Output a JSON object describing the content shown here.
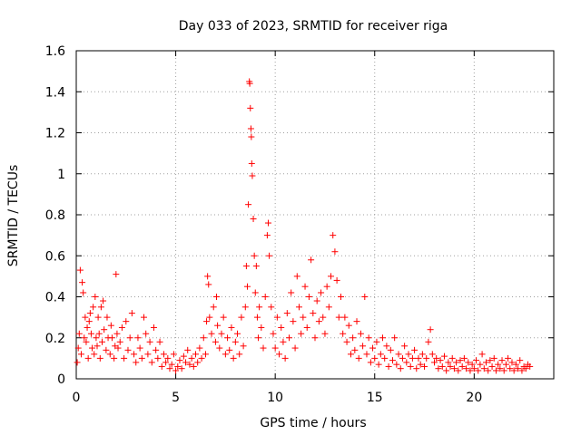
{
  "chart_data": {
    "type": "scatter",
    "title": "Day 033 of 2023, SRMTID for receiver riga",
    "xlabel": "GPS time / hours",
    "ylabel": "SRMTID / TECUs",
    "xlim": [
      0,
      24
    ],
    "ylim": [
      0,
      1.6
    ],
    "x_ticks": [
      0,
      5,
      10,
      15,
      20
    ],
    "x_tick_labels": [
      "0",
      "5",
      "10",
      "15",
      "20"
    ],
    "y_ticks": [
      0,
      0.2,
      0.4,
      0.6,
      0.8,
      1.0,
      1.2,
      1.4,
      1.6
    ],
    "y_tick_labels": [
      "0",
      "0.2",
      "0.4",
      "0.6",
      "0.8",
      "1",
      "1.2",
      "1.4",
      "1.6"
    ],
    "grid": true,
    "marker": "plus",
    "color": "#ff0000",
    "series": [
      {
        "name": "SRMTID",
        "points": [
          [
            0.05,
            0.08
          ],
          [
            0.1,
            0.15
          ],
          [
            0.15,
            0.22
          ],
          [
            0.2,
            0.53
          ],
          [
            0.25,
            0.12
          ],
          [
            0.3,
            0.47
          ],
          [
            0.35,
            0.42
          ],
          [
            0.4,
            0.2
          ],
          [
            0.45,
            0.3
          ],
          [
            0.5,
            0.18
          ],
          [
            0.55,
            0.25
          ],
          [
            0.6,
            0.1
          ],
          [
            0.65,
            0.28
          ],
          [
            0.7,
            0.32
          ],
          [
            0.75,
            0.22
          ],
          [
            0.8,
            0.15
          ],
          [
            0.85,
            0.35
          ],
          [
            0.9,
            0.12
          ],
          [
            0.95,
            0.4
          ],
          [
            1.0,
            0.2
          ],
          [
            1.05,
            0.16
          ],
          [
            1.1,
            0.3
          ],
          [
            1.15,
            0.22
          ],
          [
            1.2,
            0.1
          ],
          [
            1.25,
            0.35
          ],
          [
            1.3,
            0.18
          ],
          [
            1.35,
            0.38
          ],
          [
            1.4,
            0.24
          ],
          [
            1.5,
            0.14
          ],
          [
            1.55,
            0.3
          ],
          [
            1.6,
            0.2
          ],
          [
            1.7,
            0.12
          ],
          [
            1.75,
            0.26
          ],
          [
            1.8,
            0.2
          ],
          [
            1.9,
            0.1
          ],
          [
            1.95,
            0.16
          ],
          [
            2.0,
            0.51
          ],
          [
            2.05,
            0.22
          ],
          [
            2.1,
            0.15
          ],
          [
            2.2,
            0.18
          ],
          [
            2.3,
            0.25
          ],
          [
            2.4,
            0.1
          ],
          [
            2.5,
            0.28
          ],
          [
            2.6,
            0.14
          ],
          [
            2.7,
            0.2
          ],
          [
            2.8,
            0.32
          ],
          [
            2.9,
            0.12
          ],
          [
            3.0,
            0.08
          ],
          [
            3.1,
            0.2
          ],
          [
            3.2,
            0.15
          ],
          [
            3.3,
            0.1
          ],
          [
            3.4,
            0.3
          ],
          [
            3.5,
            0.22
          ],
          [
            3.6,
            0.12
          ],
          [
            3.7,
            0.18
          ],
          [
            3.8,
            0.08
          ],
          [
            3.9,
            0.25
          ],
          [
            4.0,
            0.14
          ],
          [
            4.1,
            0.1
          ],
          [
            4.2,
            0.18
          ],
          [
            4.3,
            0.06
          ],
          [
            4.4,
            0.12
          ],
          [
            4.5,
            0.08
          ],
          [
            4.6,
            0.1
          ],
          [
            4.7,
            0.05
          ],
          [
            4.8,
            0.07
          ],
          [
            4.9,
            0.12
          ],
          [
            5.0,
            0.04
          ],
          [
            5.1,
            0.06
          ],
          [
            5.2,
            0.09
          ],
          [
            5.3,
            0.05
          ],
          [
            5.4,
            0.11
          ],
          [
            5.5,
            0.08
          ],
          [
            5.6,
            0.14
          ],
          [
            5.7,
            0.07
          ],
          [
            5.8,
            0.1
          ],
          [
            5.9,
            0.06
          ],
          [
            6.0,
            0.12
          ],
          [
            6.1,
            0.08
          ],
          [
            6.2,
            0.15
          ],
          [
            6.3,
            0.1
          ],
          [
            6.4,
            0.2
          ],
          [
            6.5,
            0.12
          ],
          [
            6.55,
            0.28
          ],
          [
            6.6,
            0.5
          ],
          [
            6.65,
            0.46
          ],
          [
            6.7,
            0.3
          ],
          [
            6.8,
            0.22
          ],
          [
            6.9,
            0.35
          ],
          [
            7.0,
            0.18
          ],
          [
            7.05,
            0.4
          ],
          [
            7.1,
            0.26
          ],
          [
            7.2,
            0.15
          ],
          [
            7.3,
            0.22
          ],
          [
            7.4,
            0.3
          ],
          [
            7.5,
            0.12
          ],
          [
            7.6,
            0.2
          ],
          [
            7.7,
            0.14
          ],
          [
            7.8,
            0.25
          ],
          [
            7.9,
            0.1
          ],
          [
            8.0,
            0.18
          ],
          [
            8.1,
            0.22
          ],
          [
            8.2,
            0.12
          ],
          [
            8.3,
            0.3
          ],
          [
            8.4,
            0.16
          ],
          [
            8.5,
            0.35
          ],
          [
            8.55,
            0.55
          ],
          [
            8.6,
            0.45
          ],
          [
            8.65,
            0.85
          ],
          [
            8.7,
            1.45
          ],
          [
            8.72,
            1.44
          ],
          [
            8.75,
            1.32
          ],
          [
            8.78,
            1.22
          ],
          [
            8.8,
            1.18
          ],
          [
            8.82,
            1.05
          ],
          [
            8.85,
            0.99
          ],
          [
            8.9,
            0.78
          ],
          [
            8.95,
            0.6
          ],
          [
            9.0,
            0.42
          ],
          [
            9.05,
            0.55
          ],
          [
            9.1,
            0.3
          ],
          [
            9.15,
            0.2
          ],
          [
            9.2,
            0.35
          ],
          [
            9.3,
            0.25
          ],
          [
            9.4,
            0.15
          ],
          [
            9.5,
            0.4
          ],
          [
            9.6,
            0.7
          ],
          [
            9.65,
            0.76
          ],
          [
            9.7,
            0.6
          ],
          [
            9.8,
            0.35
          ],
          [
            9.9,
            0.22
          ],
          [
            10.0,
            0.15
          ],
          [
            10.1,
            0.3
          ],
          [
            10.2,
            0.12
          ],
          [
            10.3,
            0.25
          ],
          [
            10.4,
            0.18
          ],
          [
            10.5,
            0.1
          ],
          [
            10.6,
            0.32
          ],
          [
            10.7,
            0.2
          ],
          [
            10.8,
            0.42
          ],
          [
            10.9,
            0.28
          ],
          [
            11.0,
            0.15
          ],
          [
            11.1,
            0.5
          ],
          [
            11.2,
            0.35
          ],
          [
            11.3,
            0.22
          ],
          [
            11.4,
            0.3
          ],
          [
            11.5,
            0.45
          ],
          [
            11.6,
            0.25
          ],
          [
            11.7,
            0.4
          ],
          [
            11.8,
            0.58
          ],
          [
            11.9,
            0.32
          ],
          [
            12.0,
            0.2
          ],
          [
            12.1,
            0.38
          ],
          [
            12.2,
            0.28
          ],
          [
            12.3,
            0.42
          ],
          [
            12.4,
            0.3
          ],
          [
            12.5,
            0.22
          ],
          [
            12.6,
            0.45
          ],
          [
            12.7,
            0.35
          ],
          [
            12.8,
            0.5
          ],
          [
            12.9,
            0.7
          ],
          [
            13.0,
            0.62
          ],
          [
            13.1,
            0.48
          ],
          [
            13.2,
            0.3
          ],
          [
            13.3,
            0.4
          ],
          [
            13.4,
            0.22
          ],
          [
            13.5,
            0.3
          ],
          [
            13.6,
            0.18
          ],
          [
            13.7,
            0.26
          ],
          [
            13.8,
            0.12
          ],
          [
            13.9,
            0.2
          ],
          [
            14.0,
            0.14
          ],
          [
            14.1,
            0.28
          ],
          [
            14.2,
            0.1
          ],
          [
            14.3,
            0.22
          ],
          [
            14.4,
            0.16
          ],
          [
            14.5,
            0.4
          ],
          [
            14.6,
            0.12
          ],
          [
            14.7,
            0.2
          ],
          [
            14.8,
            0.08
          ],
          [
            14.9,
            0.15
          ],
          [
            15.0,
            0.1
          ],
          [
            15.1,
            0.18
          ],
          [
            15.2,
            0.07
          ],
          [
            15.3,
            0.12
          ],
          [
            15.4,
            0.2
          ],
          [
            15.5,
            0.1
          ],
          [
            15.6,
            0.16
          ],
          [
            15.7,
            0.06
          ],
          [
            15.8,
            0.14
          ],
          [
            15.9,
            0.09
          ],
          [
            16.0,
            0.2
          ],
          [
            16.1,
            0.07
          ],
          [
            16.2,
            0.12
          ],
          [
            16.3,
            0.05
          ],
          [
            16.4,
            0.1
          ],
          [
            16.5,
            0.16
          ],
          [
            16.6,
            0.08
          ],
          [
            16.7,
            0.12
          ],
          [
            16.8,
            0.06
          ],
          [
            16.9,
            0.1
          ],
          [
            17.0,
            0.14
          ],
          [
            17.1,
            0.05
          ],
          [
            17.2,
            0.1
          ],
          [
            17.3,
            0.07
          ],
          [
            17.4,
            0.12
          ],
          [
            17.5,
            0.06
          ],
          [
            17.6,
            0.1
          ],
          [
            17.7,
            0.18
          ],
          [
            17.8,
            0.24
          ],
          [
            17.9,
            0.12
          ],
          [
            18.0,
            0.08
          ],
          [
            18.1,
            0.1
          ],
          [
            18.2,
            0.05
          ],
          [
            18.3,
            0.09
          ],
          [
            18.4,
            0.06
          ],
          [
            18.5,
            0.11
          ],
          [
            18.6,
            0.04
          ],
          [
            18.7,
            0.08
          ],
          [
            18.8,
            0.06
          ],
          [
            18.9,
            0.1
          ],
          [
            19.0,
            0.05
          ],
          [
            19.1,
            0.08
          ],
          [
            19.2,
            0.04
          ],
          [
            19.3,
            0.09
          ],
          [
            19.4,
            0.06
          ],
          [
            19.5,
            0.1
          ],
          [
            19.6,
            0.05
          ],
          [
            19.7,
            0.08
          ],
          [
            19.8,
            0.04
          ],
          [
            19.9,
            0.07
          ],
          [
            20.0,
            0.05
          ],
          [
            20.1,
            0.09
          ],
          [
            20.2,
            0.04
          ],
          [
            20.3,
            0.07
          ],
          [
            20.4,
            0.12
          ],
          [
            20.5,
            0.05
          ],
          [
            20.6,
            0.08
          ],
          [
            20.7,
            0.04
          ],
          [
            20.8,
            0.09
          ],
          [
            20.9,
            0.06
          ],
          [
            21.0,
            0.1
          ],
          [
            21.1,
            0.04
          ],
          [
            21.2,
            0.07
          ],
          [
            21.3,
            0.05
          ],
          [
            21.4,
            0.09
          ],
          [
            21.5,
            0.04
          ],
          [
            21.6,
            0.07
          ],
          [
            21.7,
            0.1
          ],
          [
            21.8,
            0.05
          ],
          [
            21.9,
            0.08
          ],
          [
            22.0,
            0.04
          ],
          [
            22.1,
            0.07
          ],
          [
            22.2,
            0.05
          ],
          [
            22.3,
            0.09
          ],
          [
            22.4,
            0.04
          ],
          [
            22.5,
            0.06
          ],
          [
            22.6,
            0.05
          ],
          [
            22.7,
            0.07
          ],
          [
            22.8,
            0.06
          ]
        ]
      }
    ]
  }
}
